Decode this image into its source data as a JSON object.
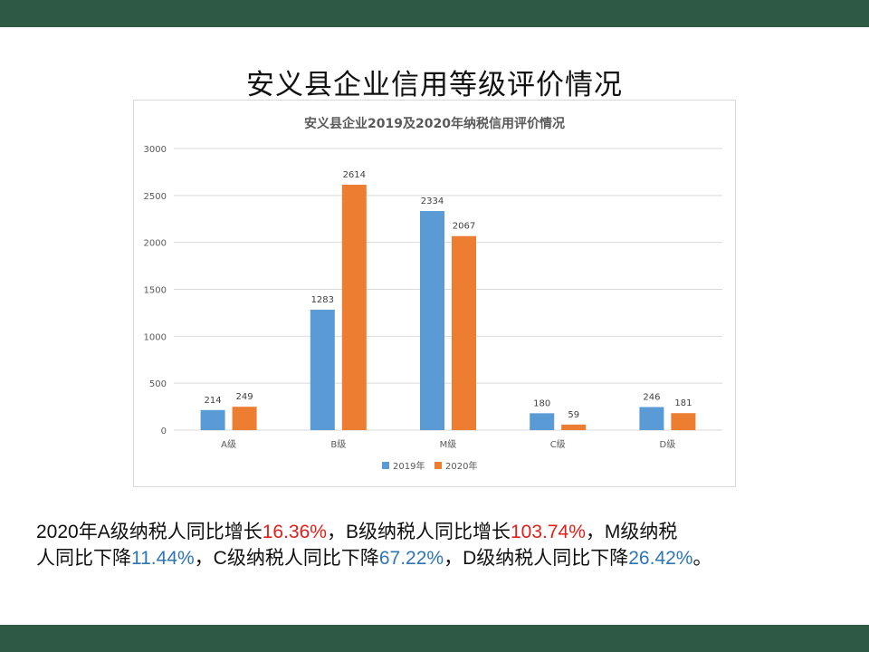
{
  "slide": {
    "title": "安义县企业信用等级评价情况"
  },
  "chart_data": {
    "type": "bar",
    "title": "安义县企业2019及2020年纳税信用评价情况",
    "categories": [
      "A级",
      "B级",
      "M级",
      "C级",
      "D级"
    ],
    "series": [
      {
        "name": "2019年",
        "values": [
          214,
          1283,
          2334,
          180,
          246
        ],
        "color": "#5b9bd5"
      },
      {
        "name": "2020年",
        "values": [
          249,
          2614,
          2067,
          59,
          181
        ],
        "color": "#ed7d31"
      }
    ],
    "ylim": [
      0,
      3000
    ],
    "yticks": [
      "0",
      "500",
      "1000",
      "1500",
      "2000",
      "2500",
      "3000"
    ],
    "grid": true,
    "legend": "bottom",
    "xlabel": "",
    "ylabel": ""
  },
  "summary": {
    "l1_a": "2020年A级纳税人同比增长",
    "l1_b": "16.36%",
    "l1_c": "，B级纳税人同比增长",
    "l1_d": "103.74%",
    "l1_e": "，M级纳税",
    "l2_a": "人同比下降",
    "l2_b": "11.44%",
    "l2_c": "，C级纳税人同比下降",
    "l2_d": "67.22%",
    "l2_e": "，D级纳税人同比下降",
    "l2_f": "26.42%",
    "l2_g": "。"
  }
}
